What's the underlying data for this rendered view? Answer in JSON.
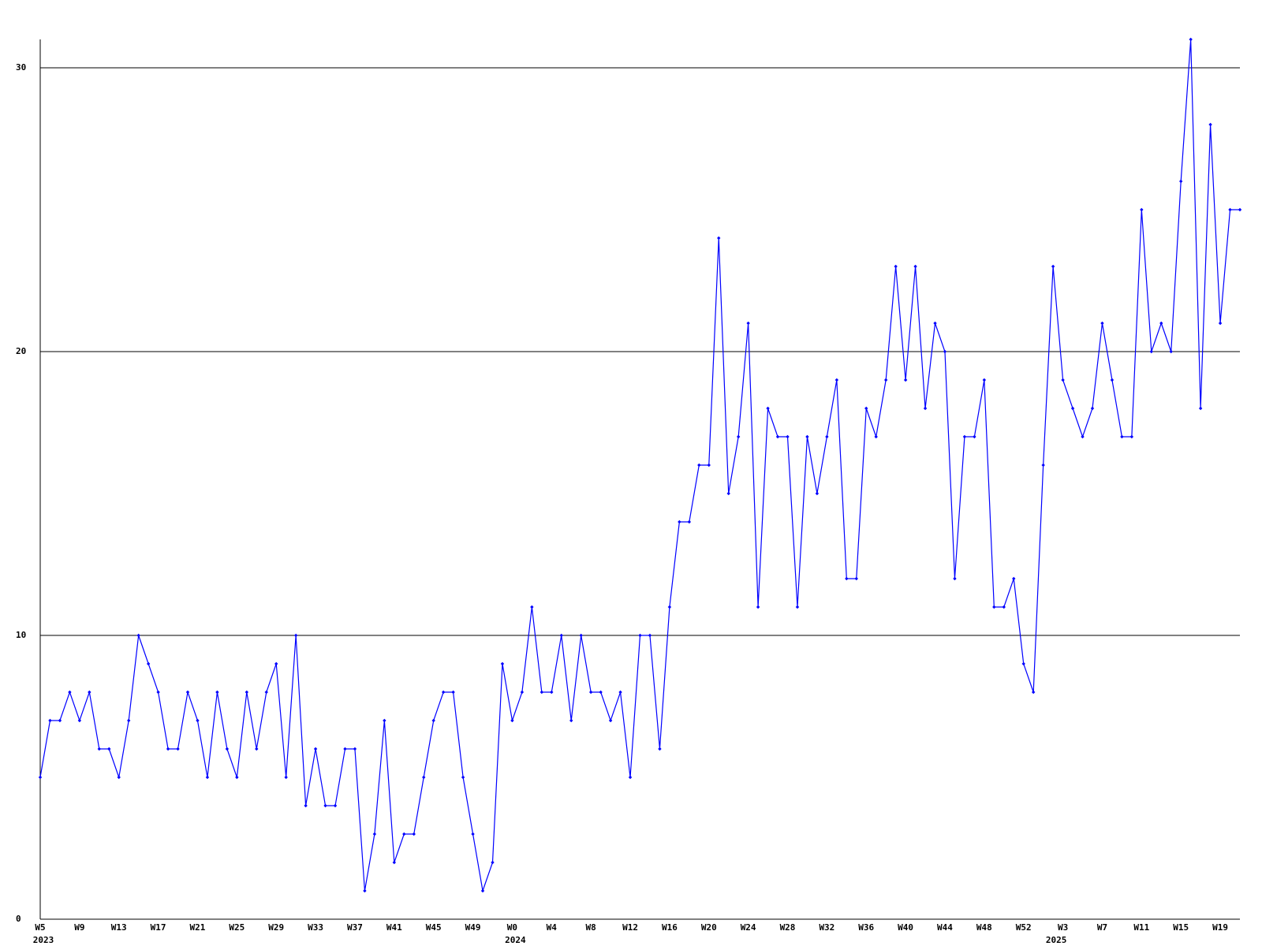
{
  "chart_data": {
    "type": "line",
    "color": "#0000ff",
    "grid": true,
    "ylim": [
      0,
      31
    ],
    "yticks": [
      0,
      10,
      20,
      30
    ],
    "categories": [
      "W5",
      null,
      null,
      null,
      "W9",
      null,
      null,
      null,
      "W13",
      null,
      null,
      null,
      "W17",
      null,
      null,
      null,
      "W21",
      null,
      null,
      null,
      "W25",
      null,
      null,
      null,
      "W29",
      null,
      null,
      null,
      "W33",
      null,
      null,
      null,
      "W37",
      null,
      null,
      null,
      "W41",
      null,
      null,
      null,
      "W45",
      null,
      null,
      null,
      "W49",
      null,
      null,
      null,
      "W0",
      null,
      null,
      null,
      "W4",
      null,
      null,
      null,
      "W8",
      null,
      null,
      null,
      "W12",
      null,
      null,
      null,
      "W16",
      null,
      null,
      null,
      "W20",
      null,
      null,
      null,
      "W24",
      null,
      null,
      null,
      "W28",
      null,
      null,
      null,
      "W32",
      null,
      null,
      null,
      "W36",
      null,
      null,
      null,
      "W40",
      null,
      null,
      null,
      "W44",
      null,
      null,
      null,
      "W48",
      null,
      null,
      null,
      "W52",
      null,
      null,
      null,
      "W3",
      null,
      null,
      null,
      "W7",
      null,
      null,
      null,
      "W11",
      null,
      null,
      null,
      "W15",
      null,
      null,
      null,
      "W19",
      null,
      null
    ],
    "year_labels": [
      "2023",
      null,
      null,
      null,
      null,
      null,
      null,
      null,
      null,
      null,
      null,
      null,
      null,
      null,
      null,
      null,
      null,
      null,
      null,
      null,
      null,
      null,
      null,
      null,
      null,
      null,
      null,
      null,
      null,
      null,
      null,
      null,
      null,
      null,
      null,
      null,
      null,
      null,
      null,
      null,
      null,
      null,
      null,
      null,
      null,
      null,
      null,
      null,
      "2024",
      null,
      null,
      null,
      null,
      null,
      null,
      null,
      null,
      null,
      null,
      null,
      null,
      null,
      null,
      null,
      null,
      null,
      null,
      null,
      null,
      null,
      null,
      null,
      null,
      null,
      null,
      null,
      null,
      null,
      null,
      null,
      null,
      null,
      null,
      null,
      null,
      null,
      null,
      null,
      null,
      null,
      null,
      null,
      null,
      null,
      null,
      null,
      null,
      null,
      null,
      null,
      null,
      null,
      null,
      "2025",
      null,
      null,
      null,
      null,
      null,
      null,
      null,
      null,
      null,
      null,
      null,
      null,
      null,
      null,
      null,
      null,
      null,
      null,
      null,
      null,
      null
    ],
    "values": [
      5,
      7,
      7,
      8,
      7,
      8,
      6,
      6,
      5,
      7,
      10,
      9,
      8,
      6,
      6,
      8,
      7,
      5,
      8,
      6,
      5,
      8,
      6,
      8,
      9,
      5,
      10,
      4,
      6,
      4,
      4,
      6,
      6,
      1,
      3,
      7,
      2,
      3,
      3,
      5,
      7,
      8,
      8,
      5,
      3,
      1,
      2,
      9,
      7,
      8,
      11,
      8,
      8,
      10,
      7,
      10,
      8,
      8,
      7,
      8,
      5,
      10,
      10,
      6,
      11,
      14,
      14,
      16,
      16,
      24,
      15,
      17,
      21,
      11,
      18,
      17,
      17,
      11,
      17,
      15,
      17,
      19,
      12,
      12,
      18,
      17,
      19,
      23,
      19,
      23,
      18,
      21,
      20,
      12,
      17,
      17,
      19,
      11,
      11,
      12,
      9,
      8,
      16,
      23,
      19,
      18,
      17,
      18,
      21,
      19,
      17,
      17,
      25,
      20,
      21,
      20,
      26,
      31,
      18,
      28,
      21,
      25,
      25
    ]
  }
}
